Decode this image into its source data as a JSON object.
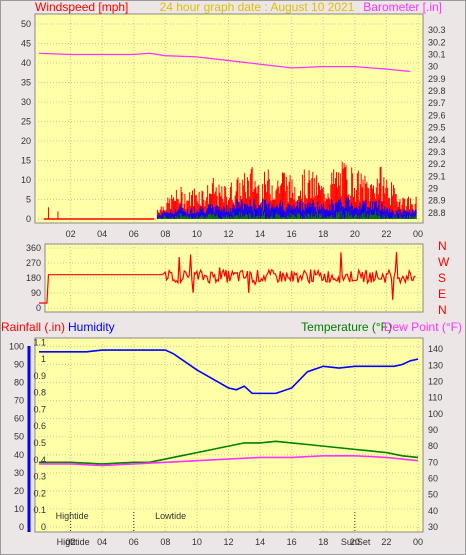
{
  "chart_data": [
    {
      "type": "line",
      "title": "24 hour graph date : August 10 2021",
      "ylabel_left": "Windspeed [mph]",
      "ylabel_right": "Barometer [.in]",
      "x_tick_labels": [
        "02",
        "04",
        "06",
        "08",
        "10",
        "12",
        "14",
        "16",
        "18",
        "20",
        "22",
        "00"
      ],
      "y_left_ticks": [
        0,
        5,
        10,
        15,
        20,
        25,
        30,
        35,
        40,
        45,
        50
      ],
      "y_left_lim": [
        0,
        50
      ],
      "y_right_ticks": [
        "28.8",
        "28.9",
        "29",
        "29.1",
        "29.2",
        "29.3",
        "29.4",
        "29.5",
        "29.6",
        "29.7",
        "29.8",
        "29.9",
        "30",
        "30.1",
        "30.2",
        "30.3"
      ],
      "y_right_lim": [
        28.75,
        30.35
      ],
      "colors": {
        "wind_gust": "#ff0000",
        "wind_avg": "#0000ff",
        "wind_low": "#008000",
        "barometer": "#ff33ff"
      },
      "series": [
        {
          "name": "Barometer",
          "axis": "right",
          "hours": [
            0,
            2,
            4,
            6,
            7,
            8,
            10,
            12,
            14,
            16,
            18,
            20,
            22,
            23.5
          ],
          "values": [
            30.11,
            30.1,
            30.1,
            30.1,
            30.11,
            30.09,
            30.08,
            30.05,
            30.02,
            29.99,
            30.0,
            30.0,
            29.98,
            29.96
          ]
        }
      ],
      "wind": {
        "calm_hours": [
          0.3,
          7.3
        ],
        "gust_by_hour": [
          [
            7.5,
            3
          ],
          [
            8,
            4
          ],
          [
            8.5,
            6
          ],
          [
            9,
            7
          ],
          [
            9.5,
            6
          ],
          [
            10,
            8
          ],
          [
            10.5,
            7
          ],
          [
            11,
            9
          ],
          [
            11.5,
            7
          ],
          [
            12,
            8
          ],
          [
            12.5,
            9
          ],
          [
            13,
            10
          ],
          [
            13.5,
            12
          ],
          [
            14,
            9
          ],
          [
            14.5,
            11
          ],
          [
            15,
            10
          ],
          [
            15.5,
            12
          ],
          [
            16,
            9
          ],
          [
            16.5,
            10
          ],
          [
            17,
            11
          ],
          [
            17.5,
            10
          ],
          [
            18,
            8
          ],
          [
            18.5,
            11
          ],
          [
            19,
            12
          ],
          [
            19.5,
            13
          ],
          [
            20,
            11
          ],
          [
            20.5,
            10
          ],
          [
            21,
            9
          ],
          [
            21.5,
            12
          ],
          [
            22,
            10
          ],
          [
            22.5,
            7
          ],
          [
            23,
            6
          ],
          [
            23.5,
            5
          ]
        ],
        "avg_by_hour": [
          [
            7.5,
            1
          ],
          [
            8,
            2
          ],
          [
            8.5,
            2
          ],
          [
            9,
            3
          ],
          [
            9.5,
            2
          ],
          [
            10,
            3
          ],
          [
            10.5,
            3
          ],
          [
            11,
            3
          ],
          [
            11.5,
            3
          ],
          [
            12,
            3
          ],
          [
            12.5,
            4
          ],
          [
            13,
            4
          ],
          [
            13.5,
            4
          ],
          [
            14,
            4
          ],
          [
            14.5,
            4
          ],
          [
            15,
            4
          ],
          [
            15.5,
            4
          ],
          [
            16,
            3
          ],
          [
            16.5,
            4
          ],
          [
            17,
            4
          ],
          [
            17.5,
            4
          ],
          [
            18,
            3
          ],
          [
            18.5,
            4
          ],
          [
            19,
            4
          ],
          [
            19.5,
            5
          ],
          [
            20,
            4
          ],
          [
            20.5,
            4
          ],
          [
            21,
            4
          ],
          [
            21.5,
            4
          ],
          [
            22,
            3
          ],
          [
            22.5,
            2
          ],
          [
            23,
            2
          ],
          [
            23.5,
            2
          ]
        ]
      }
    },
    {
      "type": "line",
      "right_labels": [
        "N",
        "W",
        "S",
        "E",
        "N"
      ],
      "y_left_ticks": [
        0,
        90,
        180,
        270,
        360
      ],
      "y_left_lim": [
        0,
        360
      ],
      "colors": {
        "direction": "#ff0000"
      },
      "direction": {
        "flat": [
          [
            0,
            30
          ],
          [
            0.5,
            30
          ],
          [
            0.6,
            200
          ],
          [
            7.8,
            200
          ]
        ],
        "noisy_from": 8,
        "noisy_to": 23.9,
        "mean": 190
      }
    },
    {
      "type": "line",
      "ylabel_left": "Rainfall (.in)",
      "ylabel_left2": "Humidity",
      "ylabel_right": "Temperature (°F)",
      "ylabel_right2": "Dew Point (°F)",
      "rain_ticks": [
        "0",
        "0.1",
        "0.2",
        "0.3",
        "0.4",
        "0.5",
        "0.6",
        "0.7",
        "0.8",
        "0.9",
        "1",
        "1.1"
      ],
      "humidity_ticks": [
        0,
        10,
        20,
        30,
        40,
        50,
        60,
        70,
        80,
        90,
        100
      ],
      "temp_ticks": [
        30,
        40,
        50,
        60,
        70,
        80,
        90,
        100,
        110,
        120,
        130,
        140
      ],
      "temp_lim": [
        30,
        145
      ],
      "humidity_lim": [
        0,
        103
      ],
      "x_tick_labels": [
        "02",
        "04",
        "06",
        "08",
        "10",
        "12",
        "14",
        "16",
        "18",
        "20",
        "22",
        "00"
      ],
      "annotations": [
        {
          "text": "Hightide",
          "hour": 2.0,
          "row": "top"
        },
        {
          "text": "Lowtide",
          "hour": 8.3,
          "row": "top"
        },
        {
          "text": "Hightide",
          "hour": 2.0,
          "row": "axis"
        },
        {
          "text": "SunSet",
          "hour": 20.0,
          "row": "axis"
        }
      ],
      "colors": {
        "humidity": "#0000ff",
        "temperature": "#008000",
        "dewpoint": "#ff33ff",
        "rain": "#ff0000"
      },
      "series": [
        {
          "name": "Humidity",
          "axis": "left",
          "hours": [
            0,
            1,
            2,
            3,
            4,
            5,
            6,
            7,
            8,
            8.5,
            9,
            10,
            11,
            12,
            12.5,
            13,
            13.5,
            14,
            15,
            16,
            17,
            18,
            19,
            20,
            21,
            22,
            22.5,
            23,
            23.5,
            24
          ],
          "values": [
            97,
            97,
            97,
            97,
            98,
            98,
            98,
            98,
            98,
            96,
            93,
            87,
            82,
            77,
            76,
            78,
            74,
            74,
            74,
            77,
            86,
            89,
            88,
            89,
            89,
            89,
            89,
            90,
            92,
            93
          ]
        },
        {
          "name": "Temperature",
          "axis": "right",
          "hours": [
            0,
            2,
            4,
            6,
            7,
            8,
            9,
            10,
            11,
            12,
            13,
            14,
            15,
            16,
            17,
            18,
            19,
            20,
            21,
            22,
            23,
            24
          ],
          "values": [
            70,
            70,
            69,
            70,
            70,
            72,
            74,
            76,
            78,
            80,
            82,
            82,
            83,
            82,
            81,
            80,
            79,
            78,
            77,
            76,
            74,
            73
          ]
        },
        {
          "name": "Dew Point",
          "axis": "right",
          "hours": [
            0,
            2,
            4,
            6,
            8,
            10,
            12,
            14,
            16,
            18,
            20,
            22,
            23,
            24
          ],
          "values": [
            69,
            69,
            68,
            69,
            70,
            71,
            72,
            73,
            73,
            74,
            74,
            73,
            72,
            71
          ]
        }
      ]
    }
  ]
}
